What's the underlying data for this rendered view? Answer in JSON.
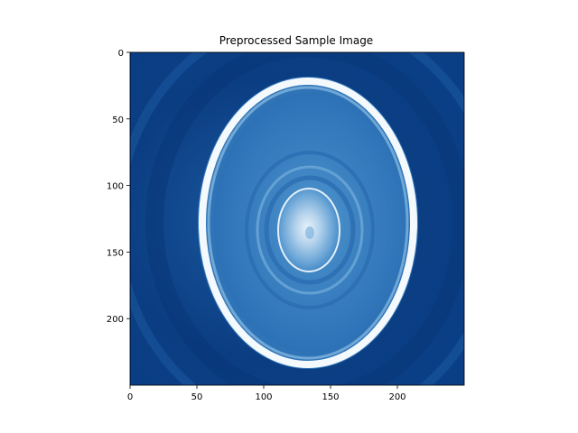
{
  "figure": {
    "title": "Preprocessed Sample Image",
    "image_extent": {
      "x": [
        0,
        250
      ],
      "y": [
        0,
        250
      ]
    },
    "x_ticks": [
      {
        "value": 0,
        "label": "0"
      },
      {
        "value": 50,
        "label": "50"
      },
      {
        "value": 100,
        "label": "100"
      },
      {
        "value": 150,
        "label": "150"
      },
      {
        "value": 200,
        "label": "200"
      }
    ],
    "y_ticks": [
      {
        "value": 0,
        "label": "0"
      },
      {
        "value": 50,
        "label": "50"
      },
      {
        "value": 100,
        "label": "100"
      },
      {
        "value": 150,
        "label": "150"
      },
      {
        "value": 200,
        "label": "200"
      }
    ],
    "colors": {
      "background_dark": "#08306b",
      "mid_blue": "#2171b5",
      "light_blue": "#6baed6",
      "bright": "#f7fbff"
    }
  }
}
